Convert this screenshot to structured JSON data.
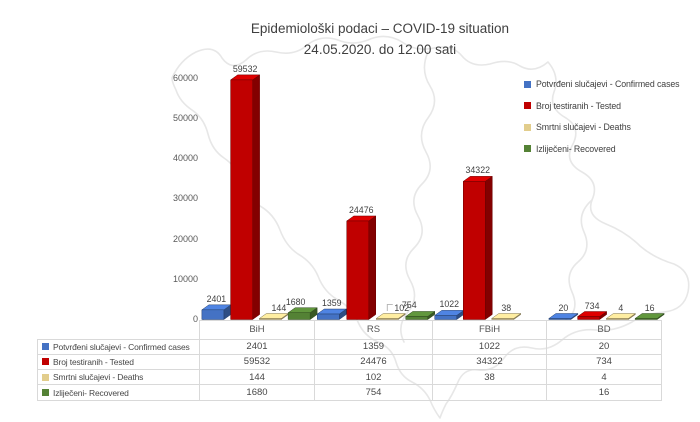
{
  "title": {
    "line1": "Epidemiološki podaci – COVID-19 situation",
    "line2": "24.05.2020. do 12.00 sati"
  },
  "chart_data": {
    "type": "bar",
    "variant": "3d-clustered-column",
    "title": "Epidemiološki podaci – COVID-19 situation 24.05.2020. do 12.00 sati",
    "categories": [
      "BiH",
      "RS",
      "FBiH",
      "BD"
    ],
    "series": [
      {
        "name": "Potvrđeni slučajevi - Confirmed cases",
        "color": "#4472C4",
        "values": [
          2401,
          1359,
          1022,
          20
        ]
      },
      {
        "name": "Broj testiranih - Tested",
        "color": "#C00000",
        "values": [
          59532,
          24476,
          34322,
          734
        ]
      },
      {
        "name": "Smrtni slučajevi - Deaths",
        "color": "#E2CD8C",
        "values": [
          144,
          102,
          38,
          4
        ]
      },
      {
        "name": "Izliječeni- Recovered",
        "color": "#548235",
        "values": [
          1680,
          754,
          null,
          16
        ]
      }
    ],
    "xlabel": "",
    "ylabel": "",
    "ylim": [
      0,
      60000
    ],
    "yticks": [
      0,
      10000,
      20000,
      30000,
      40000,
      50000,
      60000
    ],
    "grid": false,
    "legend_position": "right",
    "data_labels": true,
    "data_table_with_legend_keys": true,
    "background_watermark": "map of Bosnia and Herzegovina, light gray outline"
  },
  "table": {
    "corner_label": "",
    "columns": [
      "BiH",
      "RS",
      "FBiH",
      "BD"
    ],
    "rows": [
      {
        "label": "Potvrđeni slučajevi - Confirmed cases",
        "values": [
          "2401",
          "1359",
          "1022",
          "20"
        ]
      },
      {
        "label": "Broj testiranih - Tested",
        "values": [
          "59532",
          "24476",
          "34322",
          "734"
        ]
      },
      {
        "label": "Smrtni slučajevi - Deaths",
        "values": [
          "144",
          "102",
          "38",
          "4"
        ]
      },
      {
        "label": "Izliječeni- Recovered",
        "values": [
          "1680",
          "754",
          "",
          "16"
        ]
      }
    ]
  },
  "colors": {
    "confirmed": "#4472C4",
    "tested": "#C00000",
    "deaths": "#E2CD8C",
    "recovered": "#548235",
    "axis_text": "#595959",
    "table_border": "#d9d9d9",
    "map_outline": "#e7e7e7"
  }
}
